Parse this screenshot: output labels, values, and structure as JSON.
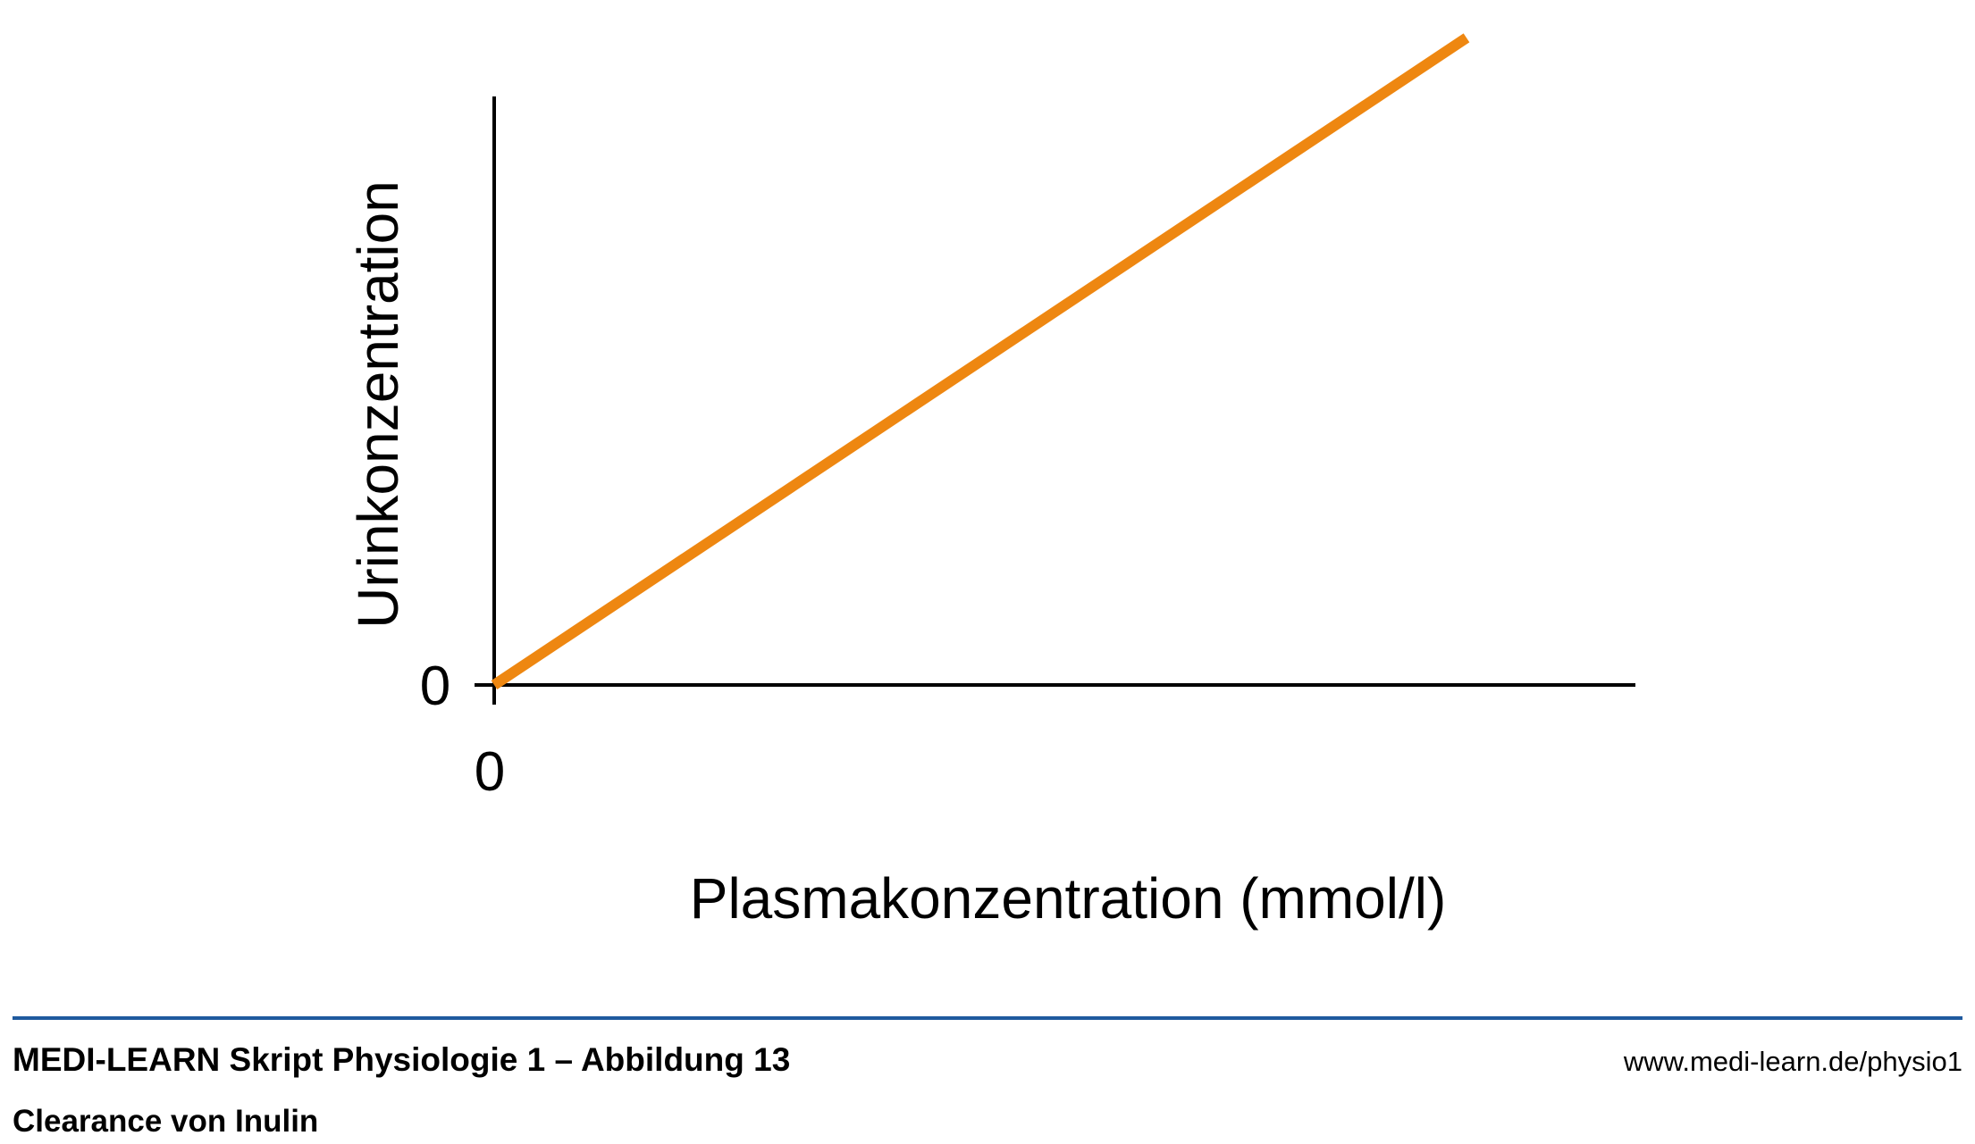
{
  "chart_data": {
    "type": "line",
    "title": "",
    "xlabel": "Plasmakonzentration (mmol/l)",
    "ylabel": "Urinkonzentration",
    "x_tick_labels": [
      "0"
    ],
    "y_tick_labels": [
      "0"
    ],
    "xlim": [
      0,
      1
    ],
    "ylim": [
      0,
      1
    ],
    "grid": false,
    "series": [
      {
        "x": [
          0,
          1
        ],
        "y": [
          0,
          1.12
        ],
        "color": "#EE8711"
      }
    ],
    "axis_color": "#000000"
  },
  "footer": {
    "title": "MEDI-LEARN Skript Physiologie 1 – Abbildung 13",
    "subtitle": "Clearance von Inulin",
    "url": "www.medi-learn.de/physio1",
    "rule_color": "#1F5A9E"
  }
}
